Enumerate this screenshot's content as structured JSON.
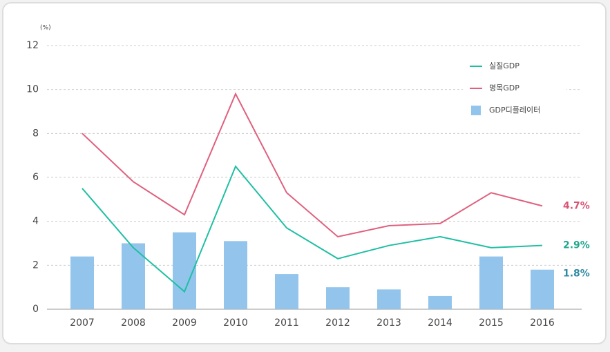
{
  "chart_data": {
    "type": "combo",
    "y_label": "(%)",
    "categories": [
      "2007",
      "2008",
      "2009",
      "2010",
      "2011",
      "2012",
      "2013",
      "2014",
      "2015",
      "2016"
    ],
    "ylim": [
      0,
      12
    ],
    "yticks": [
      0,
      2,
      4,
      6,
      8,
      10,
      12
    ],
    "grid": true,
    "legend": "top-right",
    "series": [
      {
        "name": "GDP디플레이터",
        "type": "bar",
        "color": "#93c5ec",
        "label_color": "#2f8aa3",
        "values": [
          2.4,
          3.0,
          3.5,
          3.1,
          1.6,
          1.0,
          0.9,
          0.6,
          2.4,
          1.8
        ],
        "value_labels": [
          null,
          null,
          null,
          null,
          null,
          null,
          null,
          null,
          null,
          "1.8%"
        ]
      },
      {
        "name": "실질GDP",
        "type": "line",
        "color": "#1fbfa3",
        "label_color": "#1fa88f",
        "values": [
          5.5,
          2.8,
          0.8,
          6.5,
          3.7,
          2.3,
          2.9,
          3.3,
          2.8,
          2.9
        ],
        "value_labels": [
          null,
          null,
          null,
          null,
          null,
          null,
          null,
          null,
          null,
          "2.9%"
        ]
      },
      {
        "name": "명목GDP",
        "type": "line",
        "color": "#e0607e",
        "label_color": "#d85574",
        "values": [
          8.0,
          5.8,
          4.3,
          9.8,
          5.3,
          3.3,
          3.8,
          3.9,
          5.3,
          4.7
        ],
        "value_labels": [
          null,
          null,
          null,
          null,
          null,
          null,
          null,
          null,
          null,
          "4.7%"
        ]
      }
    ]
  }
}
